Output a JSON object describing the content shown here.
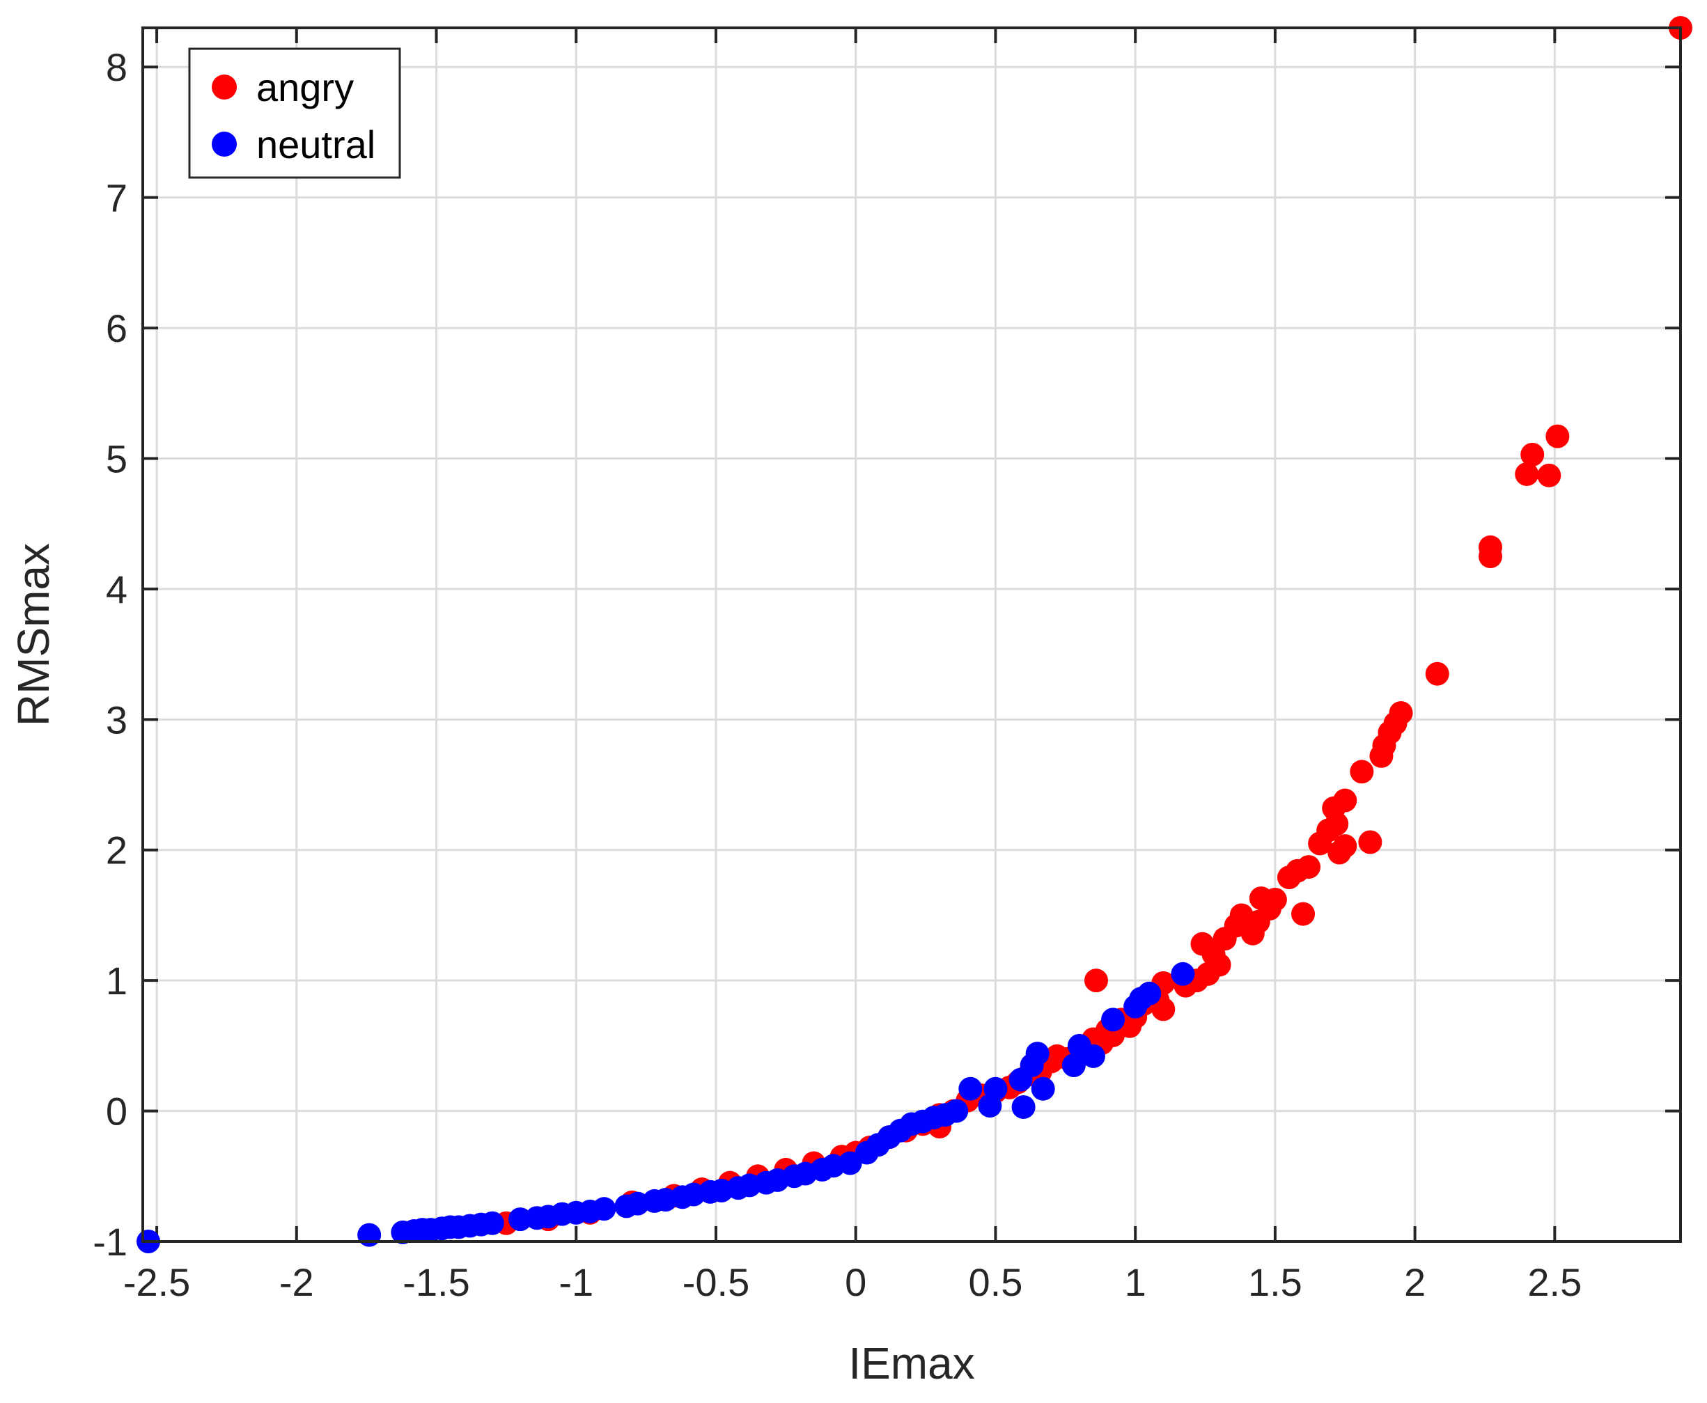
{
  "chart_data": {
    "type": "scatter",
    "title": "",
    "xlabel": "IEmax",
    "ylabel": "RMSmax",
    "xlim": [
      -2.55,
      2.95
    ],
    "ylim": [
      -1,
      8.3
    ],
    "xticks": [
      -2.5,
      -2,
      -1.5,
      -1,
      -0.5,
      0,
      0.5,
      1,
      1.5,
      2,
      2.5
    ],
    "xtick_labels": [
      "-2.5",
      "-2",
      "-1.5",
      "-1",
      "-0.5",
      "0",
      "0.5",
      "1",
      "1.5",
      "2",
      "2.5"
    ],
    "yticks": [
      -1,
      0,
      1,
      2,
      3,
      4,
      5,
      6,
      7,
      8
    ],
    "ytick_labels": [
      "-1",
      "0",
      "1",
      "2",
      "3",
      "4",
      "5",
      "6",
      "7",
      "8"
    ],
    "grid": true,
    "legend_position": "top-left",
    "series": [
      {
        "name": "angry",
        "color": "#ff0000",
        "points": [
          [
            2.95,
            8.3
          ],
          [
            2.51,
            5.17
          ],
          [
            2.42,
            5.03
          ],
          [
            2.4,
            4.88
          ],
          [
            2.48,
            4.87
          ],
          [
            2.27,
            4.32
          ],
          [
            2.27,
            4.25
          ],
          [
            2.08,
            3.35
          ],
          [
            1.95,
            3.05
          ],
          [
            1.93,
            2.97
          ],
          [
            1.91,
            2.9
          ],
          [
            1.89,
            2.8
          ],
          [
            1.88,
            2.72
          ],
          [
            1.81,
            2.6
          ],
          [
            1.84,
            2.06
          ],
          [
            1.75,
            2.38
          ],
          [
            1.71,
            2.32
          ],
          [
            1.72,
            2.2
          ],
          [
            1.69,
            2.15
          ],
          [
            1.75,
            2.03
          ],
          [
            1.66,
            2.05
          ],
          [
            1.73,
            1.98
          ],
          [
            1.62,
            1.87
          ],
          [
            1.58,
            1.84
          ],
          [
            1.55,
            1.79
          ],
          [
            1.6,
            1.51
          ],
          [
            1.5,
            1.62
          ],
          [
            1.45,
            1.63
          ],
          [
            1.48,
            1.55
          ],
          [
            1.44,
            1.45
          ],
          [
            1.38,
            1.5
          ],
          [
            1.36,
            1.42
          ],
          [
            1.42,
            1.36
          ],
          [
            1.32,
            1.32
          ],
          [
            1.28,
            1.2
          ],
          [
            1.24,
            1.28
          ],
          [
            1.3,
            1.12
          ],
          [
            1.26,
            1.05
          ],
          [
            1.22,
            1.0
          ],
          [
            1.18,
            0.96
          ],
          [
            1.1,
            0.98
          ],
          [
            1.08,
            0.85
          ],
          [
            1.05,
            0.9
          ],
          [
            1.03,
            0.82
          ],
          [
            1.1,
            0.78
          ],
          [
            1.0,
            0.72
          ],
          [
            0.98,
            0.65
          ],
          [
            0.95,
            0.7
          ],
          [
            0.92,
            0.58
          ],
          [
            0.9,
            0.62
          ],
          [
            0.88,
            0.52
          ],
          [
            0.86,
            1.0
          ],
          [
            0.85,
            0.55
          ],
          [
            0.82,
            0.45
          ],
          [
            0.8,
            0.48
          ],
          [
            0.76,
            0.4
          ],
          [
            0.72,
            0.42
          ],
          [
            0.7,
            0.38
          ],
          [
            0.66,
            0.3
          ],
          [
            0.62,
            0.28
          ],
          [
            0.58,
            0.22
          ],
          [
            0.55,
            0.18
          ],
          [
            0.5,
            0.15
          ],
          [
            0.45,
            0.12
          ],
          [
            0.4,
            0.08
          ],
          [
            0.35,
            0.0
          ],
          [
            0.3,
            -0.03
          ],
          [
            0.3,
            -0.12
          ],
          [
            0.24,
            -0.1
          ],
          [
            0.18,
            -0.15
          ],
          [
            0.12,
            -0.2
          ],
          [
            0.05,
            -0.28
          ],
          [
            0.0,
            -0.32
          ],
          [
            -0.05,
            -0.35
          ],
          [
            -0.15,
            -0.4
          ],
          [
            -0.25,
            -0.45
          ],
          [
            -0.35,
            -0.5
          ],
          [
            -0.45,
            -0.55
          ],
          [
            -0.55,
            -0.6
          ],
          [
            -0.65,
            -0.65
          ],
          [
            -0.8,
            -0.7
          ],
          [
            -0.95,
            -0.78
          ],
          [
            -1.1,
            -0.83
          ],
          [
            -1.25,
            -0.86
          ]
        ]
      },
      {
        "name": "neutral",
        "color": "#0000ff",
        "points": [
          [
            -2.53,
            -1.0
          ],
          [
            -1.74,
            -0.95
          ],
          [
            -1.62,
            -0.93
          ],
          [
            -1.58,
            -0.92
          ],
          [
            -1.55,
            -0.91
          ],
          [
            -1.52,
            -0.91
          ],
          [
            -1.48,
            -0.9
          ],
          [
            -1.45,
            -0.89
          ],
          [
            -1.42,
            -0.89
          ],
          [
            -1.38,
            -0.88
          ],
          [
            -1.34,
            -0.87
          ],
          [
            -1.3,
            -0.86
          ],
          [
            -1.2,
            -0.83
          ],
          [
            -1.14,
            -0.82
          ],
          [
            -1.1,
            -0.81
          ],
          [
            -1.05,
            -0.79
          ],
          [
            -1.0,
            -0.78
          ],
          [
            -0.95,
            -0.77
          ],
          [
            -0.9,
            -0.75
          ],
          [
            -0.82,
            -0.73
          ],
          [
            -0.78,
            -0.71
          ],
          [
            -0.72,
            -0.69
          ],
          [
            -0.68,
            -0.68
          ],
          [
            -0.62,
            -0.66
          ],
          [
            -0.58,
            -0.64
          ],
          [
            -0.52,
            -0.62
          ],
          [
            -0.48,
            -0.61
          ],
          [
            -0.42,
            -0.59
          ],
          [
            -0.38,
            -0.57
          ],
          [
            -0.32,
            -0.55
          ],
          [
            -0.28,
            -0.53
          ],
          [
            -0.22,
            -0.5
          ],
          [
            -0.18,
            -0.48
          ],
          [
            -0.12,
            -0.45
          ],
          [
            -0.08,
            -0.42
          ],
          [
            -0.02,
            -0.4
          ],
          [
            0.04,
            -0.32
          ],
          [
            0.08,
            -0.26
          ],
          [
            0.12,
            -0.2
          ],
          [
            0.16,
            -0.15
          ],
          [
            0.2,
            -0.1
          ],
          [
            0.24,
            -0.08
          ],
          [
            0.28,
            -0.05
          ],
          [
            0.32,
            -0.03
          ],
          [
            0.36,
            0.0
          ],
          [
            0.41,
            0.17
          ],
          [
            0.48,
            0.04
          ],
          [
            0.5,
            0.17
          ],
          [
            0.59,
            0.24
          ],
          [
            0.6,
            0.03
          ],
          [
            0.63,
            0.35
          ],
          [
            0.65,
            0.44
          ],
          [
            0.67,
            0.17
          ],
          [
            0.78,
            0.35
          ],
          [
            0.8,
            0.5
          ],
          [
            0.85,
            0.42
          ],
          [
            0.92,
            0.7
          ],
          [
            1.0,
            0.8
          ],
          [
            1.02,
            0.86
          ],
          [
            1.05,
            0.9
          ],
          [
            1.17,
            1.05
          ]
        ]
      }
    ]
  }
}
